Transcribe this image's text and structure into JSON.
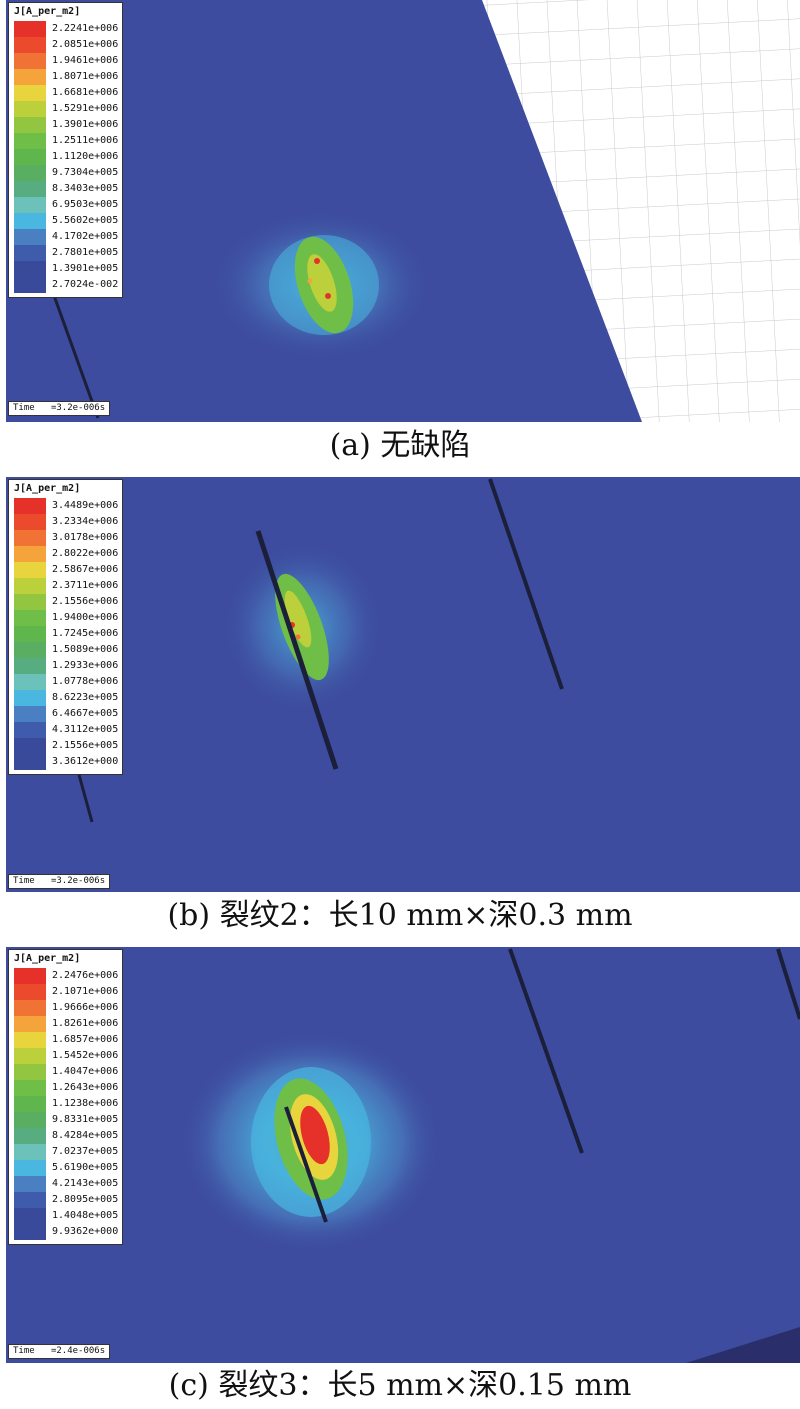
{
  "legend_title": "J[A_per_m2]",
  "time_prefix": "Time",
  "colors": [
    "#e5312a",
    "#eb4a2c",
    "#f07234",
    "#f5a33b",
    "#e8d43d",
    "#bcd03b",
    "#93c640",
    "#6fbe47",
    "#5fb64d",
    "#5aae62",
    "#57ad7f",
    "#6cc1bb",
    "#49b7df",
    "#4a7fc1",
    "#3f5cac",
    "#3a4a9b"
  ],
  "panels": [
    {
      "id": "a",
      "legend_values": [
        "2.2241e+006",
        "2.0851e+006",
        "1.9461e+006",
        "1.8071e+006",
        "1.6681e+006",
        "1.5291e+006",
        "1.3901e+006",
        "1.2511e+006",
        "1.1120e+006",
        "9.7304e+005",
        "8.3403e+005",
        "6.9503e+005",
        "5.5602e+005",
        "4.1702e+005",
        "2.7801e+005",
        "1.3901e+005",
        "2.7024e-002"
      ],
      "time": "=3.2e-006s",
      "caption": "(a) 无缺陷"
    },
    {
      "id": "b",
      "legend_values": [
        "3.4489e+006",
        "3.2334e+006",
        "3.0178e+006",
        "2.8022e+006",
        "2.5867e+006",
        "2.3711e+006",
        "2.1556e+006",
        "1.9400e+006",
        "1.7245e+006",
        "1.5089e+006",
        "1.2933e+006",
        "1.0778e+006",
        "8.6223e+005",
        "6.4667e+005",
        "4.3112e+005",
        "2.1556e+005",
        "3.3612e+000"
      ],
      "time": "=3.2e-006s",
      "caption": "(b) 裂纹2：长10 mm×深0.3 mm"
    },
    {
      "id": "c",
      "legend_values": [
        "2.2476e+006",
        "2.1071e+006",
        "1.9666e+006",
        "1.8261e+006",
        "1.6857e+006",
        "1.5452e+006",
        "1.4047e+006",
        "1.2643e+006",
        "1.1238e+006",
        "9.8331e+005",
        "8.4284e+005",
        "7.0237e+005",
        "5.6190e+005",
        "4.2143e+005",
        "2.8095e+005",
        "1.4048e+005",
        "9.9362e+000"
      ],
      "time": "=2.4e-006s",
      "caption": "(c) 裂纹3：长5 mm×深0.15 mm"
    }
  ]
}
